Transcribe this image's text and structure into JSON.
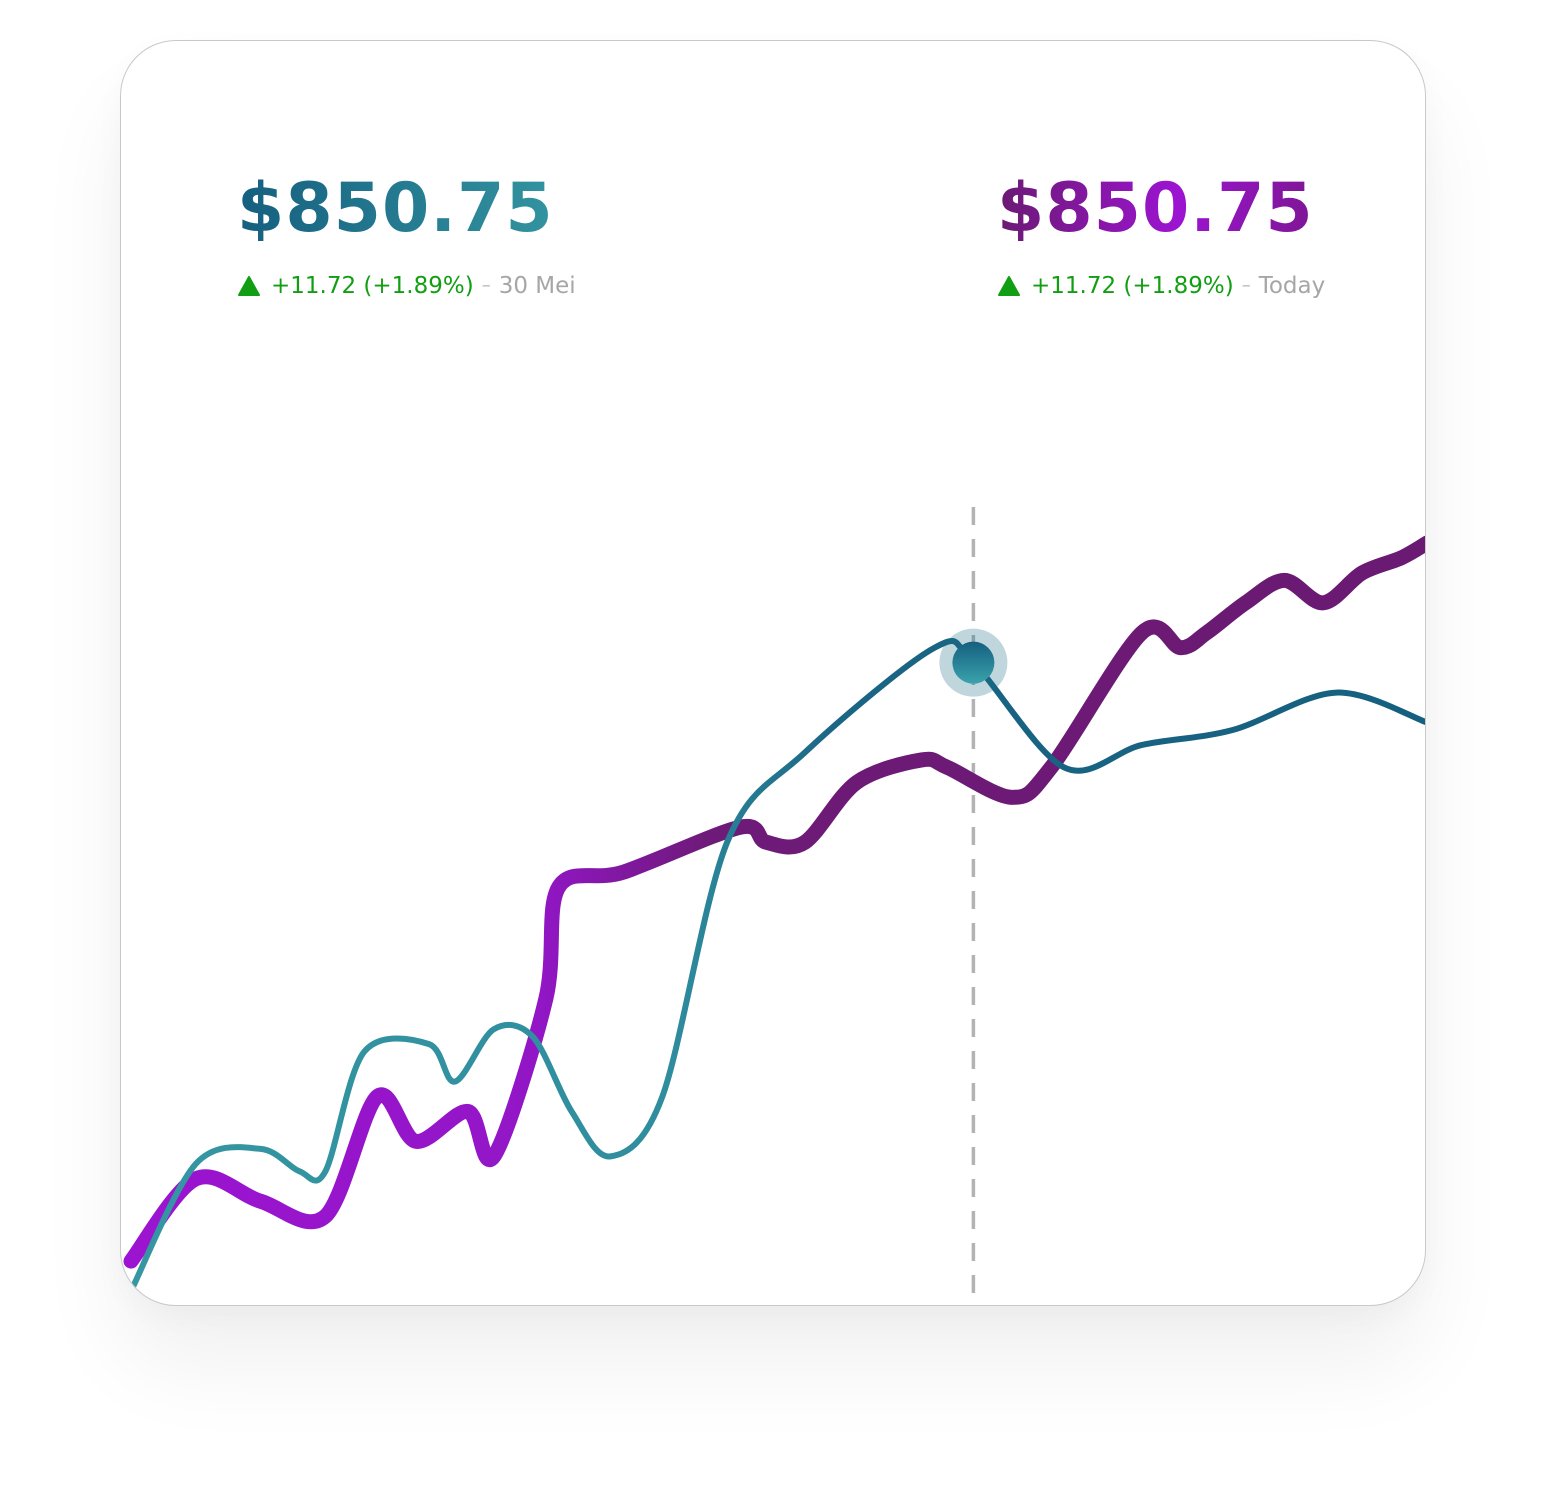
{
  "card": {
    "left": {
      "price": "$850.75",
      "change": "+11.72 (+1.89%)",
      "separator": "–",
      "date": "30 Mei"
    },
    "right": {
      "price": "$850.75",
      "change": "+11.72 (+1.89%)",
      "separator": "–",
      "date": "Today"
    }
  },
  "colors": {
    "teal_dark": "#155f7f",
    "teal_light": "#3597a2",
    "purple_dark": "#6a1a72",
    "purple_bright": "#9c14d1",
    "up_green": "#129e12"
  },
  "chart_data": {
    "type": "line",
    "grid": false,
    "legend": "none",
    "series": [
      {
        "color": "purple",
        "points": [
          [
            0,
            0.04
          ],
          [
            0.05,
            0.15
          ],
          [
            0.1,
            0.12
          ],
          [
            0.15,
            0.1
          ],
          [
            0.19,
            0.26
          ],
          [
            0.22,
            0.2
          ],
          [
            0.26,
            0.24
          ],
          [
            0.28,
            0.18
          ],
          [
            0.32,
            0.39
          ],
          [
            0.33,
            0.54
          ],
          [
            0.38,
            0.56
          ],
          [
            0.47,
            0.62
          ],
          [
            0.49,
            0.6
          ],
          [
            0.52,
            0.6
          ],
          [
            0.56,
            0.68
          ],
          [
            0.61,
            0.71
          ],
          [
            0.63,
            0.7
          ],
          [
            0.68,
            0.66
          ],
          [
            0.71,
            0.7
          ],
          [
            0.78,
            0.88
          ],
          [
            0.81,
            0.86
          ],
          [
            0.83,
            0.88
          ],
          [
            0.86,
            0.92
          ],
          [
            0.89,
            0.95
          ],
          [
            0.92,
            0.92
          ],
          [
            0.95,
            0.96
          ],
          [
            0.98,
            0.98
          ],
          [
            1.0,
            1.0
          ]
        ]
      },
      {
        "color": "teal",
        "points": [
          [
            0,
            0.0
          ],
          [
            0.05,
            0.17
          ],
          [
            0.1,
            0.19
          ],
          [
            0.13,
            0.16
          ],
          [
            0.15,
            0.16
          ],
          [
            0.18,
            0.32
          ],
          [
            0.23,
            0.33
          ],
          [
            0.25,
            0.28
          ],
          [
            0.28,
            0.35
          ],
          [
            0.31,
            0.34
          ],
          [
            0.34,
            0.24
          ],
          [
            0.37,
            0.18
          ],
          [
            0.41,
            0.26
          ],
          [
            0.46,
            0.6
          ],
          [
            0.52,
            0.72
          ],
          [
            0.62,
            0.86
          ],
          [
            0.65,
            0.84
          ],
          [
            0.72,
            0.7
          ],
          [
            0.78,
            0.73
          ],
          [
            0.85,
            0.75
          ],
          [
            0.93,
            0.8
          ],
          [
            1.0,
            0.76
          ]
        ]
      }
    ],
    "highlight": {
      "series": "teal",
      "x": 0.65
    }
  }
}
